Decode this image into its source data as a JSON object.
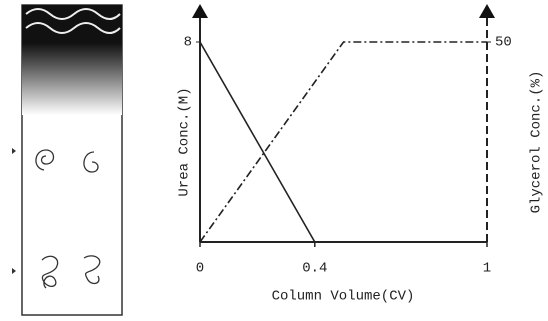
{
  "chart_data": {
    "type": "line",
    "x_label": "Column Volume(CV)",
    "y_label": "Urea Conc.(M)",
    "y2_label": "Glycerol Conc.(%)",
    "xlim": [
      0,
      1
    ],
    "xticks": [
      0,
      0.4,
      1
    ],
    "ylim": [
      0,
      8
    ],
    "yticks": [
      8
    ],
    "y2lim": [
      0,
      50
    ],
    "y2ticks": [
      50
    ],
    "series": [
      {
        "name": "Urea",
        "color": "#222222",
        "x": [
          0,
          0.4
        ],
        "values": [
          8,
          0
        ],
        "dash": "solid"
      },
      {
        "name": "Glycerol",
        "color": "#222222",
        "x": [
          0,
          0.5,
          1
        ],
        "values": [
          0,
          50,
          50
        ],
        "axis": "y2",
        "dash": "dashdot"
      }
    ]
  }
}
